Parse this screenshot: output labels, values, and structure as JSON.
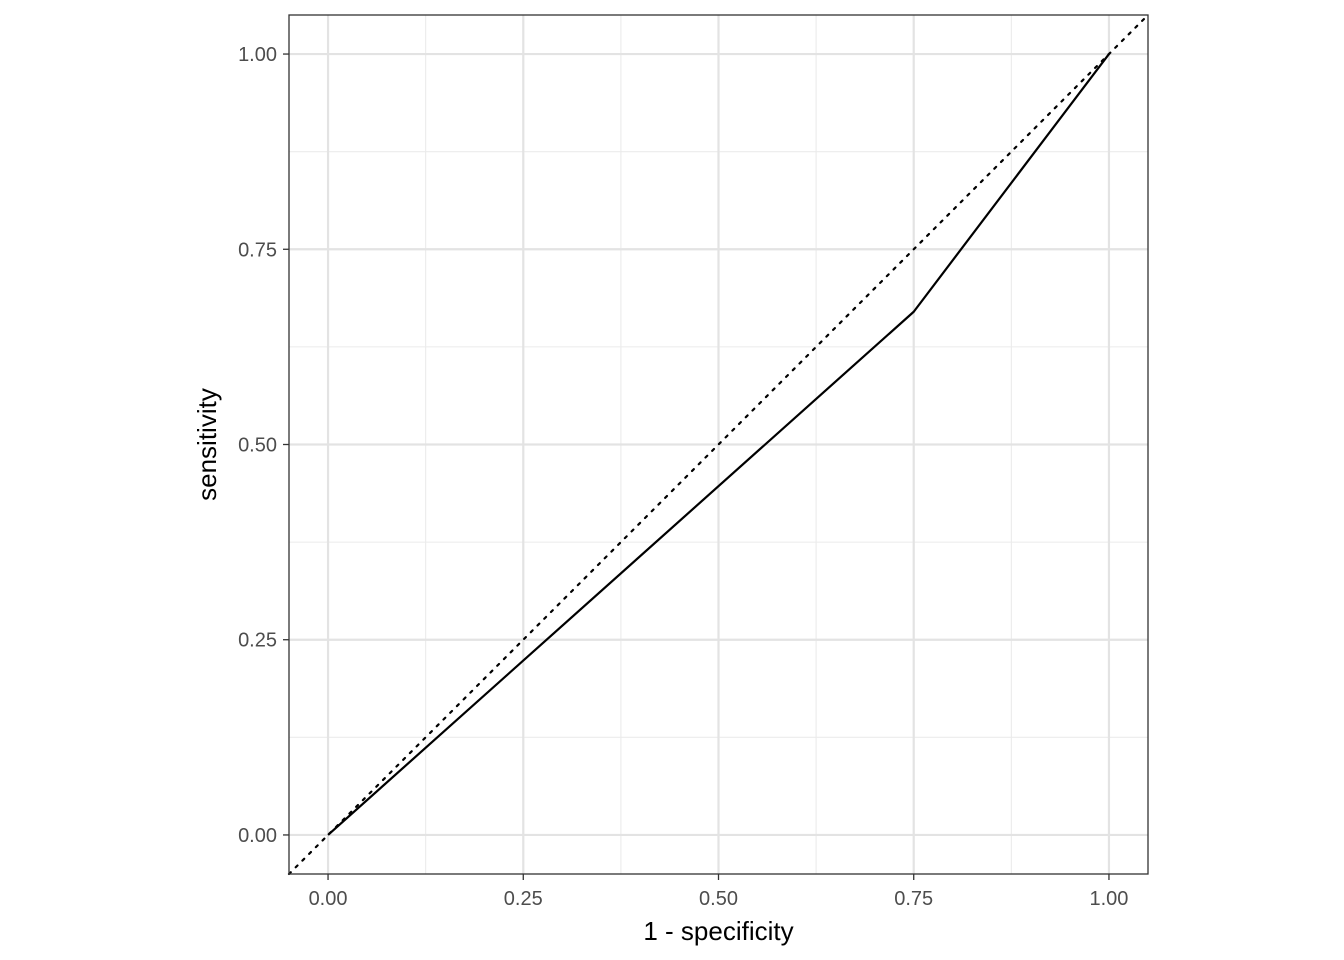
{
  "chart_data": {
    "type": "line",
    "title": "",
    "xlabel": "1 - specificity",
    "ylabel": "sensitivity",
    "xlim": [
      -0.05,
      1.05
    ],
    "ylim": [
      -0.05,
      1.05
    ],
    "x_ticks": [
      "0.00",
      "0.25",
      "0.50",
      "0.75",
      "1.00"
    ],
    "y_ticks": [
      "0.00",
      "0.25",
      "0.50",
      "0.75",
      "1.00"
    ],
    "x_tick_values": [
      0,
      0.25,
      0.5,
      0.75,
      1
    ],
    "y_tick_values": [
      0,
      0.25,
      0.5,
      0.75,
      1
    ],
    "grid": true,
    "aspect": "equal",
    "series": [
      {
        "style": "solid",
        "color": "#000000",
        "x": [
          0.0,
          0.75,
          1.0
        ],
        "y": [
          0.0,
          0.67,
          1.0
        ]
      }
    ],
    "reference_line": {
      "style": "dotted",
      "color": "#000000",
      "x": [
        -0.05,
        1.05
      ],
      "y": [
        -0.05,
        1.05
      ]
    }
  }
}
